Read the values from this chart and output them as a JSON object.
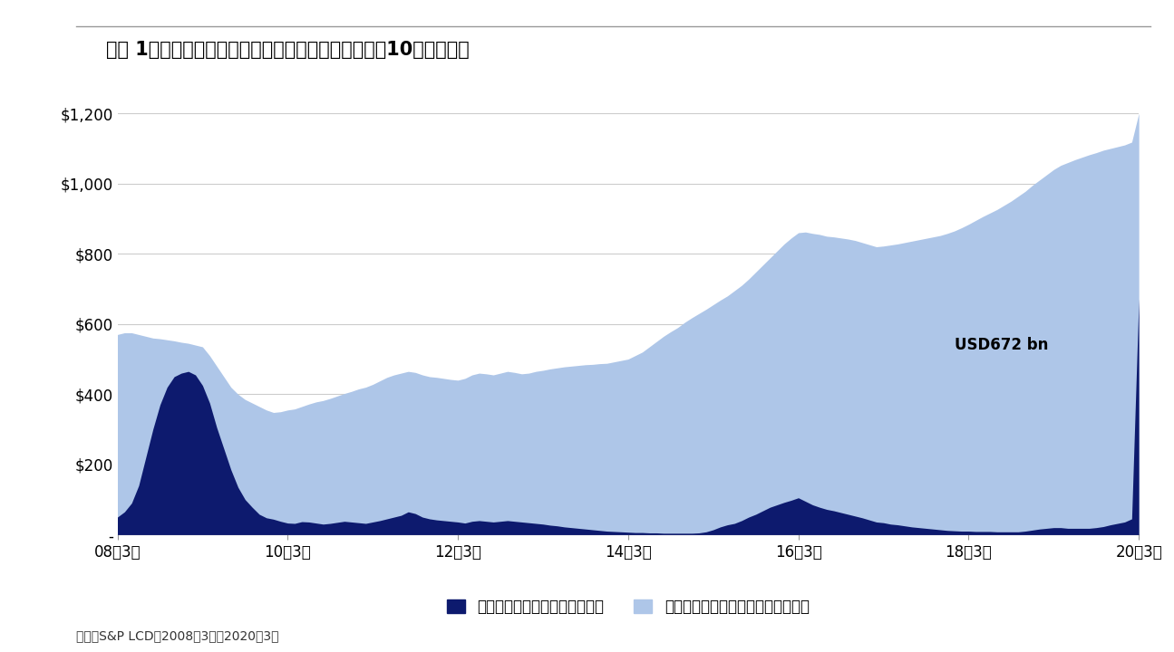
{
  "title": "（図 1）米国のディストレスト・ローンの残高推移（10億米ドル）",
  "source": "出所：S&P LCD、2008年3月～2020年3月",
  "annotation": "USD672 bn",
  "legend_distress": "ディストレスト・ローンの残高",
  "legend_non_distress": "ディストレスト・ローン以外の残高",
  "color_distress": "#0d1a6e",
  "color_non_distress": "#aec6e8",
  "background": "#ffffff",
  "yticks": [
    0,
    200,
    400,
    600,
    800,
    1000,
    1200
  ],
  "ytick_labels": [
    "-",
    "$200",
    "$400",
    "$600",
    "$800",
    "$1,000",
    "$1,200"
  ],
  "xtick_labels": [
    "08年3月",
    "10年3月",
    "12年3月",
    "14年3月",
    "16年3月",
    "18年3月",
    "20年3月"
  ],
  "xtick_positions": [
    0,
    24,
    48,
    72,
    96,
    120,
    144
  ],
  "distress": [
    50,
    65,
    90,
    140,
    220,
    300,
    370,
    420,
    450,
    460,
    465,
    455,
    425,
    375,
    305,
    245,
    185,
    135,
    100,
    78,
    58,
    48,
    44,
    38,
    33,
    32,
    37,
    36,
    33,
    30,
    32,
    35,
    38,
    36,
    34,
    32,
    36,
    40,
    45,
    50,
    55,
    65,
    60,
    50,
    45,
    42,
    40,
    38,
    36,
    33,
    38,
    40,
    38,
    36,
    38,
    40,
    38,
    36,
    34,
    32,
    30,
    27,
    25,
    22,
    20,
    18,
    16,
    14,
    12,
    10,
    9,
    8,
    7,
    6,
    6,
    5,
    5,
    4,
    4,
    4,
    4,
    4,
    5,
    8,
    14,
    22,
    28,
    32,
    40,
    50,
    58,
    68,
    78,
    85,
    92,
    98,
    105,
    95,
    85,
    78,
    72,
    68,
    63,
    58,
    53,
    48,
    42,
    36,
    34,
    30,
    28,
    25,
    22,
    20,
    18,
    16,
    14,
    12,
    11,
    10,
    10,
    9,
    9,
    9,
    8,
    8,
    8,
    8,
    10,
    13,
    16,
    18,
    20,
    20,
    18,
    18,
    18,
    18,
    20,
    23,
    28,
    32,
    36,
    45,
    672
  ],
  "total": [
    570,
    575,
    575,
    570,
    565,
    560,
    558,
    555,
    552,
    548,
    545,
    540,
    535,
    510,
    480,
    450,
    420,
    400,
    385,
    375,
    365,
    355,
    348,
    350,
    355,
    358,
    365,
    372,
    378,
    382,
    388,
    395,
    402,
    408,
    415,
    420,
    428,
    438,
    448,
    455,
    460,
    465,
    462,
    455,
    450,
    448,
    445,
    442,
    440,
    445,
    455,
    460,
    458,
    455,
    460,
    465,
    462,
    458,
    460,
    465,
    468,
    472,
    475,
    478,
    480,
    482,
    484,
    485,
    487,
    488,
    492,
    496,
    500,
    510,
    520,
    535,
    550,
    565,
    578,
    590,
    605,
    618,
    630,
    642,
    655,
    668,
    680,
    695,
    710,
    728,
    748,
    768,
    788,
    808,
    828,
    845,
    860,
    862,
    858,
    855,
    850,
    848,
    845,
    842,
    838,
    832,
    826,
    820,
    822,
    825,
    828,
    832,
    836,
    840,
    844,
    848,
    852,
    858,
    865,
    874,
    884,
    895,
    906,
    916,
    926,
    938,
    950,
    964,
    978,
    995,
    1010,
    1025,
    1040,
    1052,
    1060,
    1068,
    1075,
    1082,
    1088,
    1095,
    1100,
    1105,
    1110,
    1118,
    1200
  ]
}
